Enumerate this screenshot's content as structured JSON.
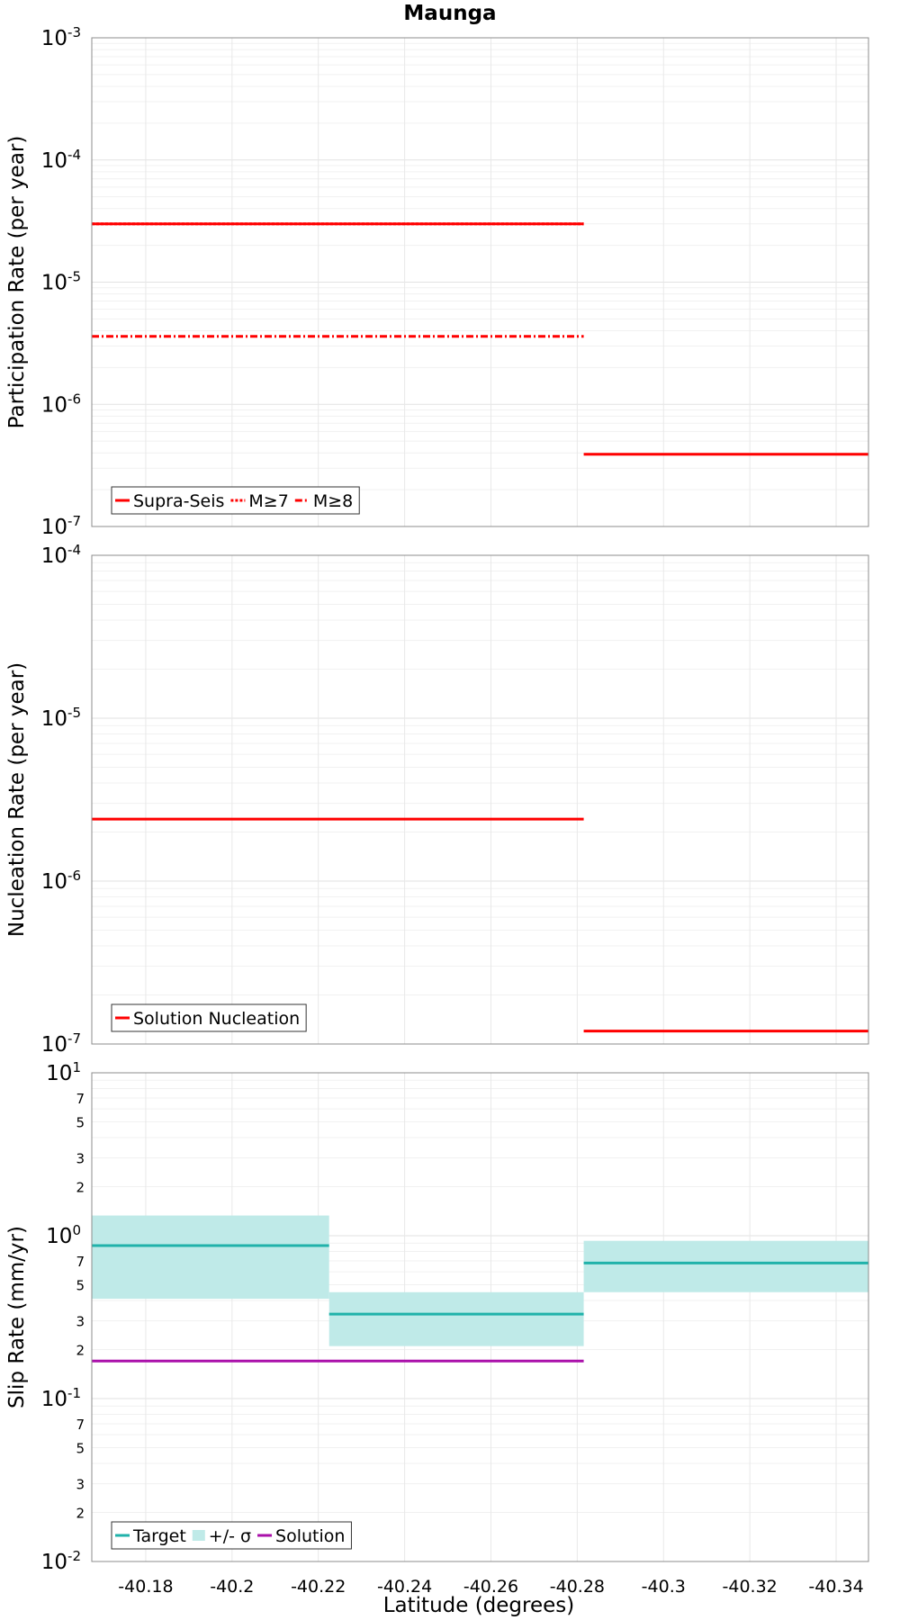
{
  "chart_data": {
    "type": "line",
    "title": "Maunga",
    "xlabel": "Latitude (degrees)",
    "xlim": [
      -40.1675,
      -40.3475
    ],
    "x_ticks": [
      -40.18,
      -40.2,
      -40.22,
      -40.24,
      -40.26,
      -40.28,
      -40.3,
      -40.32,
      -40.34
    ],
    "x_tick_labels": [
      "-40.18",
      "-40.2",
      "-40.22",
      "-40.24",
      "-40.26",
      "-40.28",
      "-40.3",
      "-40.32",
      "-40.34"
    ],
    "grid": true,
    "panels": [
      {
        "name": "participation",
        "ylabel": "Participation Rate (per year)",
        "yscale": "log",
        "ylim_exp": [
          -7,
          -3
        ],
        "y_minor_labels": [],
        "legend": {
          "placement": "bottom-left",
          "entries": [
            {
              "label": "Supra-Seis",
              "style": "solid",
              "color": "#ff0000"
            },
            {
              "label": "M≥7",
              "style": "dotted",
              "color": "#ff0000"
            },
            {
              "label": "M≥8",
              "style": "dashdot",
              "color": "#ff0000"
            }
          ]
        },
        "series": [
          {
            "name": "Supra-Seis",
            "style": "solid",
            "color": "#ff0000",
            "segments": [
              {
                "x0": -40.1675,
                "x1": -40.2815,
                "y": 3e-05
              },
              {
                "x0": -40.2815,
                "x1": -40.3475,
                "y": 3.9e-07
              }
            ]
          },
          {
            "name": "M≥7",
            "style": "dotted",
            "color": "#ff0000",
            "segments": [
              {
                "x0": -40.1675,
                "x1": -40.2815,
                "y": 3e-05
              }
            ]
          },
          {
            "name": "M≥8",
            "style": "dashdot",
            "color": "#ff0000",
            "segments": [
              {
                "x0": -40.1675,
                "x1": -40.2815,
                "y": 3.6e-06
              }
            ]
          }
        ],
        "bands": []
      },
      {
        "name": "nucleation",
        "ylabel": "Nucleation Rate (per year)",
        "yscale": "log",
        "ylim_exp": [
          -7,
          -4
        ],
        "y_minor_labels": [],
        "legend": {
          "placement": "bottom-left",
          "entries": [
            {
              "label": "Solution Nucleation",
              "style": "solid",
              "color": "#ff0000"
            }
          ]
        },
        "series": [
          {
            "name": "Solution Nucleation",
            "style": "solid",
            "color": "#ff0000",
            "segments": [
              {
                "x0": -40.1675,
                "x1": -40.2815,
                "y": 2.4e-06
              },
              {
                "x0": -40.2815,
                "x1": -40.3475,
                "y": 1.2e-07
              }
            ]
          }
        ],
        "bands": []
      },
      {
        "name": "slip",
        "ylabel": "Slip Rate (mm/yr)",
        "yscale": "log",
        "ylim_exp": [
          -2,
          1
        ],
        "y_minor_labels": [
          2,
          3,
          5,
          7
        ],
        "legend": {
          "placement": "bottom-left",
          "entries": [
            {
              "label": "Target",
              "style": "solid",
              "color": "#20b2aa"
            },
            {
              "label": "+/- σ",
              "style": "band",
              "color": "#bfeae8"
            },
            {
              "label": "Solution",
              "style": "solid",
              "color": "#aa10aa"
            }
          ]
        },
        "series": [
          {
            "name": "Target",
            "style": "solid",
            "color": "#20b2aa",
            "segments": [
              {
                "x0": -40.1675,
                "x1": -40.2225,
                "y": 0.87
              },
              {
                "x0": -40.2225,
                "x1": -40.2815,
                "y": 0.33
              },
              {
                "x0": -40.2815,
                "x1": -40.3475,
                "y": 0.68
              }
            ]
          },
          {
            "name": "Solution",
            "style": "solid",
            "color": "#aa10aa",
            "segments": [
              {
                "x0": -40.1675,
                "x1": -40.2815,
                "y": 0.17
              }
            ]
          }
        ],
        "bands": [
          {
            "name": "+/- σ",
            "color": "#bfeae8",
            "segments": [
              {
                "x0": -40.1675,
                "x1": -40.2225,
                "y_low": 0.41,
                "y_high": 1.33
              },
              {
                "x0": -40.2225,
                "x1": -40.2815,
                "y_low": 0.21,
                "y_high": 0.45
              },
              {
                "x0": -40.2815,
                "x1": -40.3475,
                "y_low": 0.45,
                "y_high": 0.93
              }
            ]
          }
        ]
      }
    ]
  }
}
